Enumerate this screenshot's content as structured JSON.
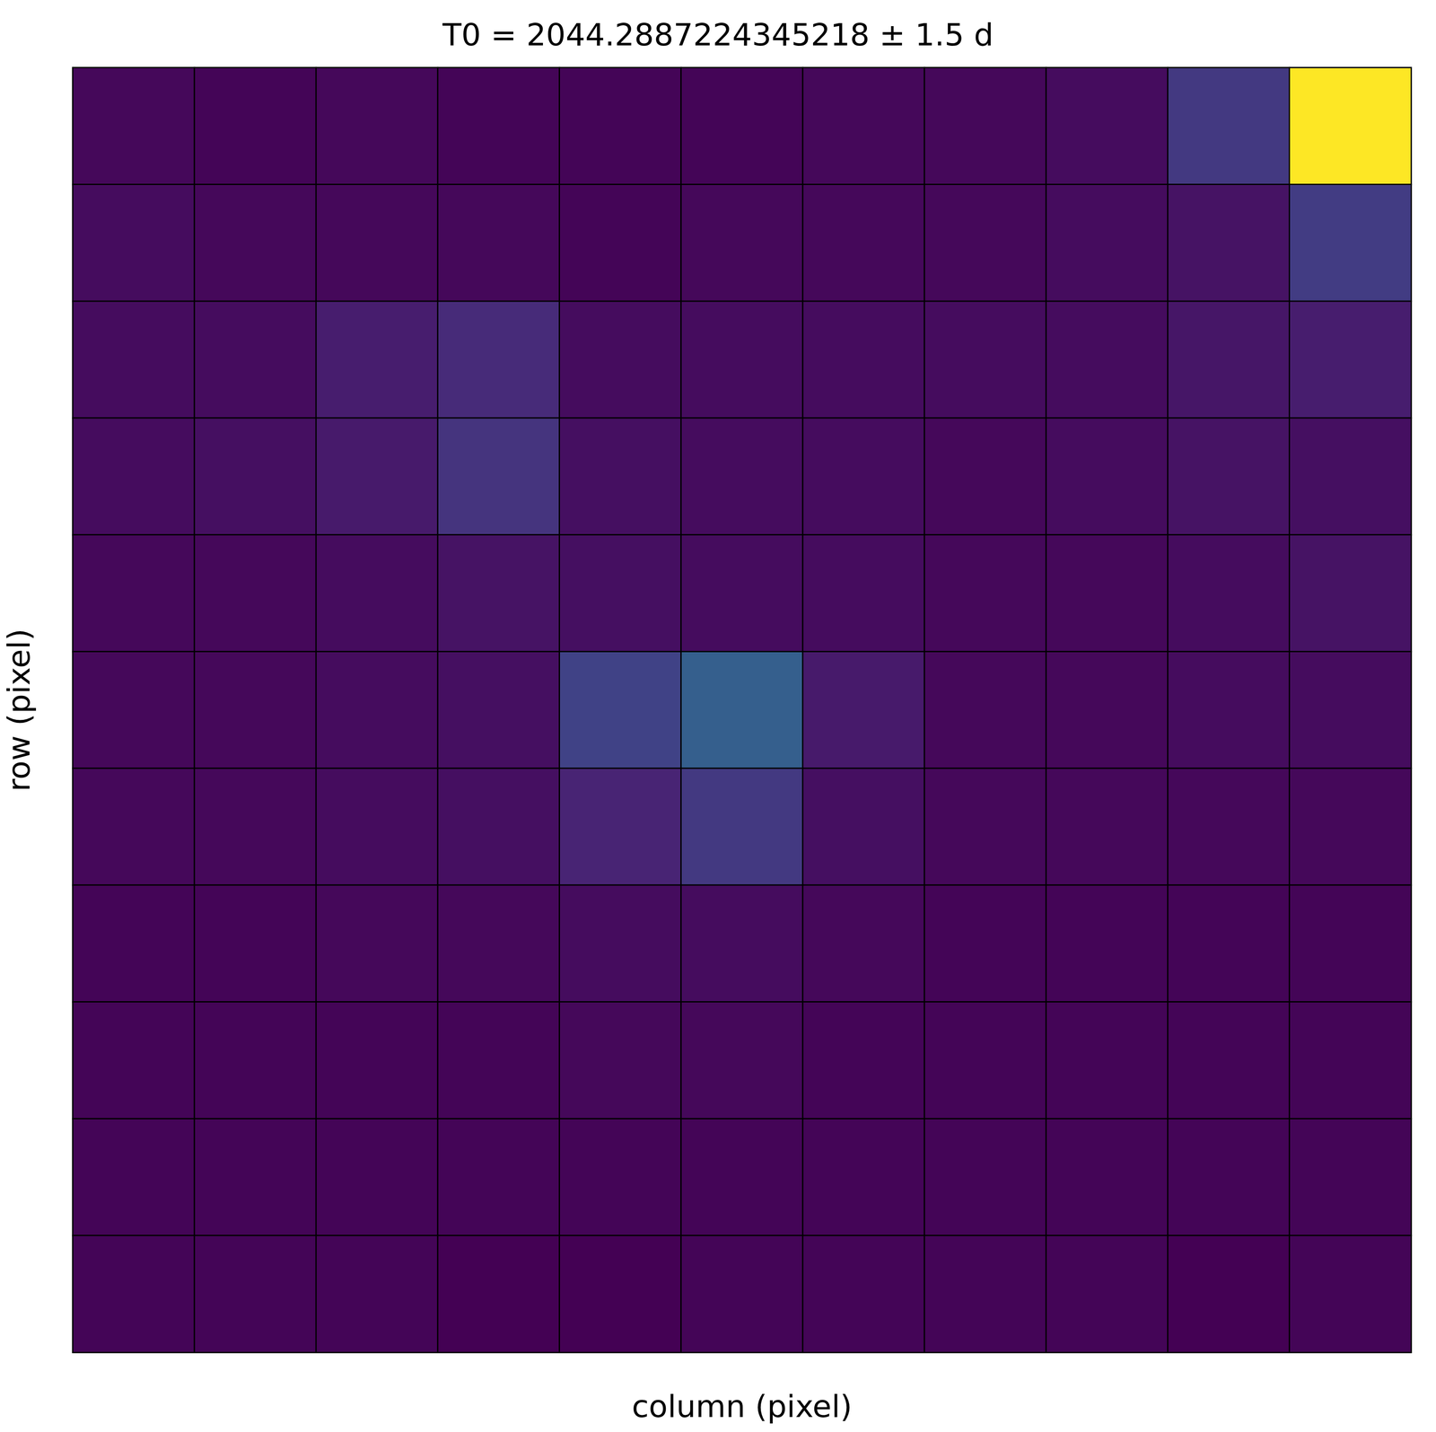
{
  "chart_data": {
    "type": "heatmap",
    "title": "T0 = 2044.2887224345218 ± 1.5 d",
    "x_label": "column (pixel)",
    "y_label": "row (pixel)",
    "tick_labels": false,
    "grid": true,
    "cells": [
      [
        0.02,
        0.01,
        0.02,
        0.01,
        0.01,
        0.01,
        0.02,
        0.02,
        0.03,
        0.17,
        1.0
      ],
      [
        0.03,
        0.02,
        0.02,
        0.02,
        0.01,
        0.02,
        0.02,
        0.02,
        0.03,
        0.05,
        0.18
      ],
      [
        0.03,
        0.03,
        0.08,
        0.12,
        0.03,
        0.03,
        0.03,
        0.03,
        0.03,
        0.06,
        0.08
      ],
      [
        0.03,
        0.04,
        0.07,
        0.15,
        0.04,
        0.03,
        0.03,
        0.02,
        0.03,
        0.05,
        0.04
      ],
      [
        0.02,
        0.02,
        0.03,
        0.05,
        0.04,
        0.03,
        0.03,
        0.02,
        0.02,
        0.03,
        0.05
      ],
      [
        0.02,
        0.02,
        0.03,
        0.04,
        0.2,
        0.3,
        0.07,
        0.02,
        0.02,
        0.03,
        0.03
      ],
      [
        0.02,
        0.02,
        0.03,
        0.04,
        0.1,
        0.17,
        0.04,
        0.02,
        0.02,
        0.02,
        0.02
      ],
      [
        0.01,
        0.01,
        0.02,
        0.02,
        0.03,
        0.03,
        0.02,
        0.01,
        0.01,
        0.01,
        0.01
      ],
      [
        0.01,
        0.01,
        0.01,
        0.01,
        0.02,
        0.02,
        0.01,
        0.01,
        0.01,
        0.01,
        0.01
      ],
      [
        0.01,
        0.01,
        0.01,
        0.01,
        0.01,
        0.01,
        0.01,
        0.01,
        0.01,
        0.01,
        0.01
      ],
      [
        0.01,
        0.01,
        0.01,
        0.0,
        0.0,
        0.01,
        0.01,
        0.01,
        0.01,
        0.0,
        0.01
      ]
    ]
  }
}
